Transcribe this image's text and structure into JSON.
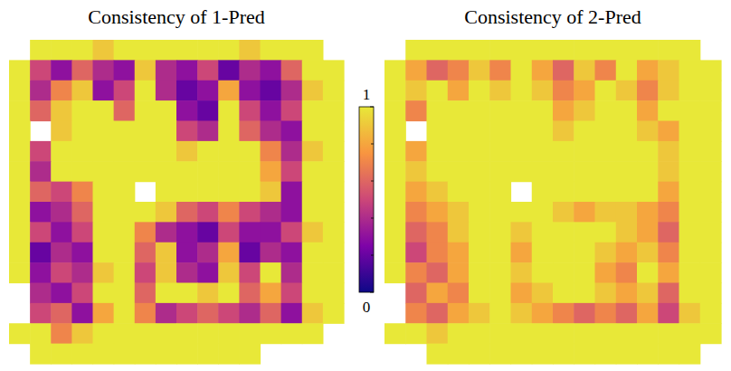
{
  "chart_data": [
    {
      "type": "heatmap",
      "title": "Consistency of 1-Pred",
      "cells": [
        [
          null,
          1,
          1,
          1,
          0.9,
          1,
          1,
          1,
          1,
          1,
          1,
          0.9,
          1,
          1,
          1,
          null
        ],
        [
          1,
          0.5,
          0.3,
          0.6,
          0.4,
          0.3,
          0.9,
          0.4,
          0.3,
          0.5,
          0.2,
          0.4,
          0.3,
          0.6,
          1,
          1
        ],
        [
          1,
          0.4,
          0.7,
          0.9,
          0.3,
          0.5,
          1,
          0.4,
          0.2,
          0.3,
          0.8,
          0.3,
          0.2,
          0.4,
          0.9,
          1
        ],
        [
          1,
          0.6,
          0.9,
          1,
          1,
          0.6,
          1,
          1,
          0.3,
          0.2,
          1,
          0.5,
          0.3,
          0.5,
          1,
          1
        ],
        [
          1,
          null,
          0.9,
          1,
          1,
          1,
          1,
          1,
          0.5,
          0.4,
          1,
          0.6,
          0.4,
          0.3,
          1,
          1
        ],
        [
          1,
          0.5,
          1,
          1,
          1,
          1,
          1,
          1,
          0.9,
          1,
          1,
          1,
          0.7,
          0.4,
          0.9,
          1
        ],
        [
          1,
          0.4,
          1,
          1,
          1,
          1,
          1,
          1,
          1,
          1,
          1,
          1,
          0.8,
          0.5,
          1,
          1
        ],
        [
          1,
          0.6,
          0.5,
          0.7,
          1,
          1,
          null,
          1,
          1,
          1,
          1,
          1,
          0.9,
          0.3,
          1,
          1
        ],
        [
          1,
          0.3,
          0.4,
          0.6,
          1,
          1,
          1,
          0.9,
          0.6,
          0.5,
          0.7,
          0.5,
          0.4,
          0.3,
          1,
          1
        ],
        [
          1,
          0.5,
          0.3,
          0.5,
          1,
          1,
          0.7,
          0.4,
          0.3,
          0.2,
          0.5,
          0.3,
          0.3,
          0.5,
          0.9,
          1
        ],
        [
          1,
          0.2,
          0.4,
          0.3,
          1,
          1,
          0.6,
          0.9,
          0.3,
          0.4,
          0.8,
          0.2,
          0.4,
          0.3,
          1,
          1
        ],
        [
          1,
          0.3,
          0.5,
          0.4,
          0.9,
          1,
          0.5,
          0.9,
          0.4,
          0.3,
          0.9,
          0.5,
          1,
          0.4,
          1,
          1
        ],
        [
          null,
          0.4,
          0.3,
          0.5,
          1,
          1,
          0.6,
          1,
          1,
          0.9,
          1,
          0.6,
          0.8,
          0.5,
          1,
          1
        ],
        [
          null,
          0.5,
          0.6,
          0.3,
          0.8,
          1,
          0.7,
          0.4,
          0.5,
          0.6,
          0.5,
          0.4,
          0.6,
          0.3,
          0.9,
          1
        ],
        [
          1,
          1,
          0.7,
          0.9,
          1,
          1,
          1,
          1,
          1,
          1,
          1,
          1,
          1,
          1,
          1,
          null
        ],
        [
          null,
          1,
          1,
          1,
          1,
          1,
          1,
          1,
          1,
          1,
          1,
          1,
          null,
          null,
          null,
          null
        ]
      ]
    },
    {
      "type": "heatmap",
      "title": "Consistency of 2-Pred",
      "cells": [
        [
          null,
          1,
          1,
          1,
          1,
          1,
          1,
          1,
          1,
          1,
          1,
          1,
          1,
          1,
          1,
          null
        ],
        [
          1,
          0.8,
          0.6,
          0.7,
          0.9,
          0.7,
          1,
          0.8,
          0.6,
          0.9,
          0.7,
          1,
          0.8,
          0.9,
          1,
          1
        ],
        [
          1,
          0.9,
          1,
          0.8,
          1,
          0.9,
          1,
          0.9,
          0.7,
          0.8,
          1,
          0.9,
          0.7,
          0.9,
          1,
          1
        ],
        [
          1,
          0.7,
          1,
          1,
          1,
          1,
          1,
          1,
          0.8,
          0.9,
          1,
          1,
          0.8,
          1,
          1,
          1
        ],
        [
          1,
          null,
          1,
          1,
          1,
          1,
          1,
          1,
          0.9,
          1,
          1,
          1,
          0.9,
          0.8,
          1,
          1
        ],
        [
          1,
          0.8,
          1,
          1,
          1,
          1,
          1,
          1,
          1,
          1,
          1,
          1,
          1,
          0.9,
          1,
          1
        ],
        [
          1,
          0.9,
          1,
          1,
          1,
          1,
          1,
          1,
          1,
          1,
          1,
          1,
          1,
          0.9,
          1,
          1
        ],
        [
          1,
          0.8,
          0.9,
          1,
          1,
          1,
          null,
          1,
          1,
          1,
          1,
          1,
          1,
          0.8,
          1,
          1
        ],
        [
          1,
          0.7,
          0.8,
          0.9,
          1,
          1,
          1,
          1,
          0.9,
          0.8,
          0.9,
          0.9,
          0.8,
          0.7,
          1,
          1
        ],
        [
          1,
          0.6,
          0.7,
          0.9,
          1,
          1,
          0.9,
          1,
          1,
          1,
          1,
          0.9,
          0.8,
          0.6,
          1,
          1
        ],
        [
          1,
          0.5,
          0.7,
          0.8,
          1,
          1,
          0.8,
          1,
          1,
          1,
          0.9,
          0.8,
          0.9,
          0.7,
          1,
          1
        ],
        [
          1,
          0.7,
          0.6,
          0.8,
          1,
          1,
          0.9,
          1,
          1,
          1,
          0.8,
          0.7,
          1,
          0.8,
          1,
          1
        ],
        [
          null,
          0.6,
          0.8,
          0.7,
          1,
          1,
          0.8,
          0.9,
          1,
          1,
          0.9,
          0.8,
          0.9,
          0.6,
          1,
          1
        ],
        [
          null,
          0.7,
          0.6,
          0.8,
          0.9,
          1,
          0.9,
          0.8,
          0.7,
          0.6,
          0.7,
          0.6,
          0.8,
          0.5,
          0.9,
          1
        ],
        [
          1,
          1,
          0.9,
          1,
          1,
          1,
          1,
          1,
          1,
          1,
          1,
          1,
          1,
          1,
          1,
          1
        ],
        [
          null,
          null,
          1,
          1,
          1,
          1,
          1,
          1,
          1,
          1,
          1,
          1,
          1,
          1,
          1,
          null
        ]
      ]
    }
  ],
  "colorbar": {
    "range": [
      0,
      1
    ],
    "ticks": [
      0,
      1
    ],
    "minor_ticks": [
      0.2,
      0.4,
      0.6,
      0.8
    ]
  }
}
